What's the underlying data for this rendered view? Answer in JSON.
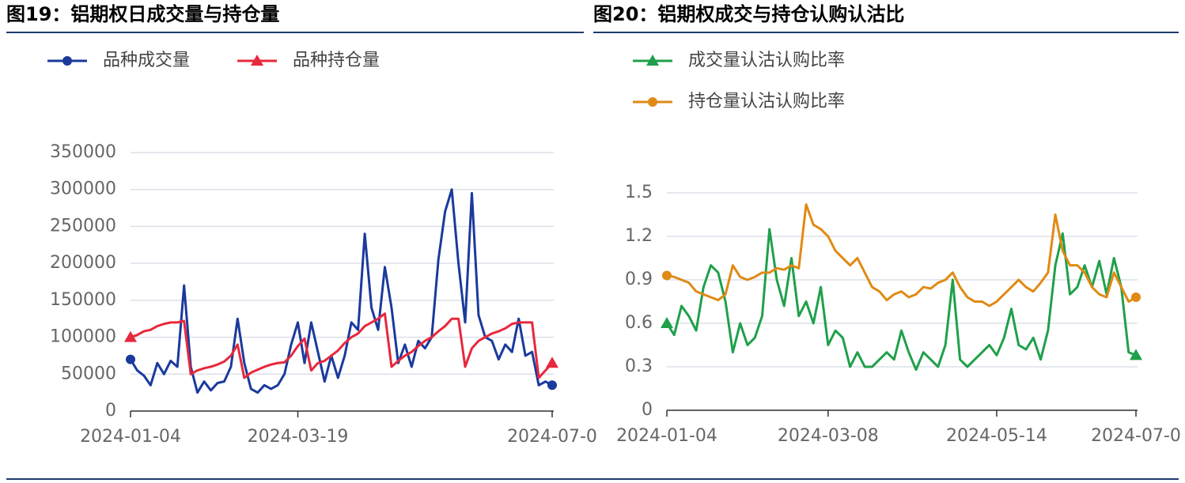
{
  "chart_data": [
    {
      "type": "line",
      "title": "图19：铝期权日成交量与持仓量",
      "categories": [
        "2024-01-04",
        null,
        null,
        null,
        null,
        null,
        null,
        null,
        null,
        null,
        null,
        null,
        null,
        null,
        null,
        null,
        null,
        null,
        null,
        null,
        null,
        null,
        null,
        null,
        null,
        "2024-03-19",
        null,
        null,
        null,
        null,
        null,
        null,
        null,
        null,
        null,
        null,
        null,
        null,
        null,
        null,
        null,
        null,
        null,
        null,
        null,
        null,
        null,
        null,
        null,
        null,
        null,
        null,
        null,
        null,
        null,
        null,
        null,
        null,
        null,
        null,
        null,
        null,
        null,
        "2024-07-0"
      ],
      "series": [
        {
          "name": "品种成交量",
          "color": "#1a3a9c",
          "marker": "circle",
          "values": [
            70000,
            55000,
            48000,
            35000,
            65000,
            50000,
            68000,
            60000,
            170000,
            60000,
            25000,
            40000,
            28000,
            38000,
            40000,
            60000,
            125000,
            65000,
            30000,
            25000,
            35000,
            30000,
            35000,
            50000,
            90000,
            120000,
            65000,
            120000,
            80000,
            40000,
            75000,
            45000,
            75000,
            120000,
            110000,
            240000,
            140000,
            110000,
            195000,
            140000,
            65000,
            90000,
            60000,
            95000,
            85000,
            100000,
            205000,
            270000,
            300000,
            200000,
            120000,
            295000,
            130000,
            100000,
            95000,
            70000,
            90000,
            80000,
            125000,
            75000,
            80000,
            35000,
            40000,
            35000
          ]
        },
        {
          "name": "品种持仓量",
          "color": "#e8283c",
          "marker": "triangle",
          "values": [
            100000,
            103000,
            108000,
            110000,
            115000,
            118000,
            120000,
            120000,
            122000,
            50000,
            55000,
            58000,
            60000,
            63000,
            67000,
            75000,
            90000,
            45000,
            52000,
            56000,
            60000,
            63000,
            65000,
            66000,
            75000,
            88000,
            98000,
            55000,
            65000,
            68000,
            75000,
            82000,
            92000,
            100000,
            105000,
            115000,
            120000,
            125000,
            132000,
            60000,
            68000,
            75000,
            80000,
            88000,
            95000,
            100000,
            108000,
            115000,
            125000,
            125000,
            60000,
            85000,
            95000,
            100000,
            105000,
            108000,
            112000,
            118000,
            120000,
            120000,
            120000,
            45000,
            55000,
            65000
          ]
        }
      ],
      "ylim": [
        0,
        350000
      ],
      "yticks": [
        0,
        50000,
        100000,
        150000,
        200000,
        250000,
        300000,
        350000
      ],
      "grid": true
    },
    {
      "type": "line",
      "title": "图20：铝期权成交与持仓认购认沽比",
      "categories": [
        "2024-01-04",
        null,
        null,
        null,
        null,
        null,
        null,
        null,
        null,
        null,
        null,
        null,
        null,
        null,
        null,
        null,
        null,
        null,
        null,
        null,
        null,
        null,
        "2024-03-08",
        null,
        null,
        null,
        null,
        null,
        null,
        null,
        null,
        null,
        null,
        null,
        null,
        null,
        null,
        null,
        null,
        null,
        null,
        null,
        null,
        null,
        null,
        "2024-05-14",
        null,
        null,
        null,
        null,
        null,
        null,
        null,
        null,
        null,
        null,
        null,
        null,
        null,
        null,
        null,
        null,
        null,
        null,
        "2024-07-0"
      ],
      "series": [
        {
          "name": "成交量认沽认购比率",
          "color": "#1fa04a",
          "marker": "triangle",
          "values": [
            0.6,
            0.52,
            0.72,
            0.65,
            0.55,
            0.85,
            1.0,
            0.95,
            0.75,
            0.4,
            0.6,
            0.45,
            0.5,
            0.65,
            1.25,
            0.9,
            0.72,
            1.05,
            0.65,
            0.75,
            0.6,
            0.85,
            0.45,
            0.55,
            0.5,
            0.3,
            0.4,
            0.3,
            0.3,
            0.35,
            0.4,
            0.35,
            0.55,
            0.4,
            0.28,
            0.4,
            0.35,
            0.3,
            0.45,
            0.9,
            0.35,
            0.3,
            0.35,
            0.4,
            0.45,
            0.38,
            0.5,
            0.7,
            0.45,
            0.42,
            0.5,
            0.35,
            0.55,
            1.0,
            1.22,
            0.8,
            0.85,
            1.0,
            0.85,
            1.03,
            0.8,
            1.05,
            0.85,
            0.4,
            0.38
          ]
        },
        {
          "name": "持仓量认沽认购比率",
          "color": "#e08a14",
          "marker": "circle",
          "values": [
            0.93,
            0.92,
            0.9,
            0.88,
            0.82,
            0.8,
            0.78,
            0.76,
            0.8,
            1.0,
            0.92,
            0.9,
            0.92,
            0.95,
            0.95,
            0.98,
            0.97,
            1.0,
            0.98,
            1.42,
            1.28,
            1.25,
            1.2,
            1.1,
            1.05,
            1.0,
            1.05,
            0.95,
            0.85,
            0.82,
            0.76,
            0.8,
            0.82,
            0.78,
            0.8,
            0.85,
            0.84,
            0.88,
            0.9,
            0.95,
            0.85,
            0.78,
            0.75,
            0.75,
            0.72,
            0.75,
            0.8,
            0.85,
            0.9,
            0.85,
            0.82,
            0.88,
            0.95,
            1.35,
            1.1,
            1.0,
            1.0,
            0.95,
            0.85,
            0.8,
            0.78,
            0.95,
            0.85,
            0.75,
            0.78
          ]
        }
      ],
      "ylim": [
        0,
        1.5
      ],
      "yticks": [
        0,
        0.3,
        0.6,
        0.9,
        1.2,
        1.5
      ],
      "grid": true
    }
  ]
}
